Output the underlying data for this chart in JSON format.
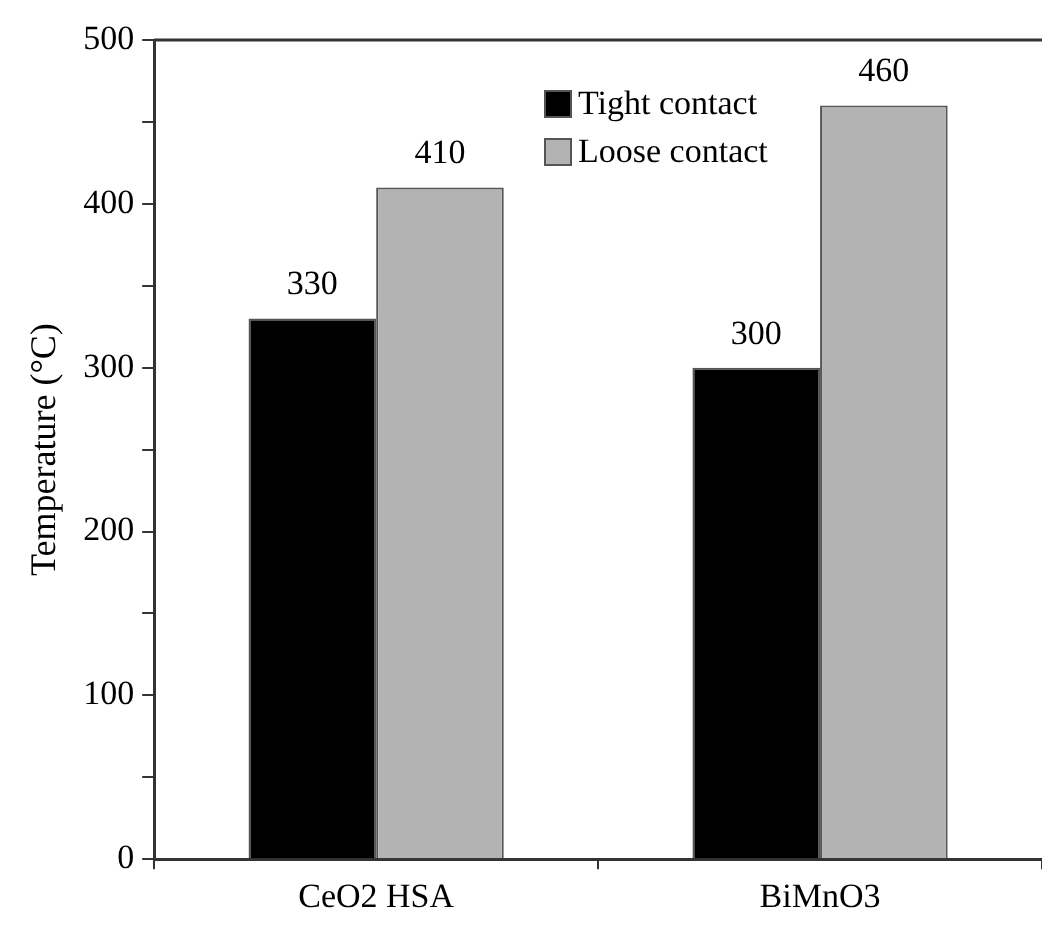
{
  "chart_data": {
    "type": "bar",
    "categories": [
      "CeO2 HSA",
      "BiMnO3"
    ],
    "ylabel": "Temperature (°C)",
    "series": [
      {
        "name": "Tight contact",
        "color": "#000000",
        "values": [
          330,
          300
        ]
      },
      {
        "name": "Loose contact",
        "color": "#b3b3b3",
        "values": [
          410,
          460
        ]
      }
    ],
    "ylim": [
      0,
      500
    ],
    "yticks": [
      0,
      {
        "value": 50,
        "label": null
      },
      100,
      {
        "value": 150,
        "label": null
      },
      200,
      {
        "value": 250,
        "label": null
      },
      300,
      {
        "value": 350,
        "label": null
      },
      400,
      {
        "value": 450,
        "label": null
      },
      500
    ],
    "grid": false,
    "legend": "top",
    "data_labels": true
  }
}
